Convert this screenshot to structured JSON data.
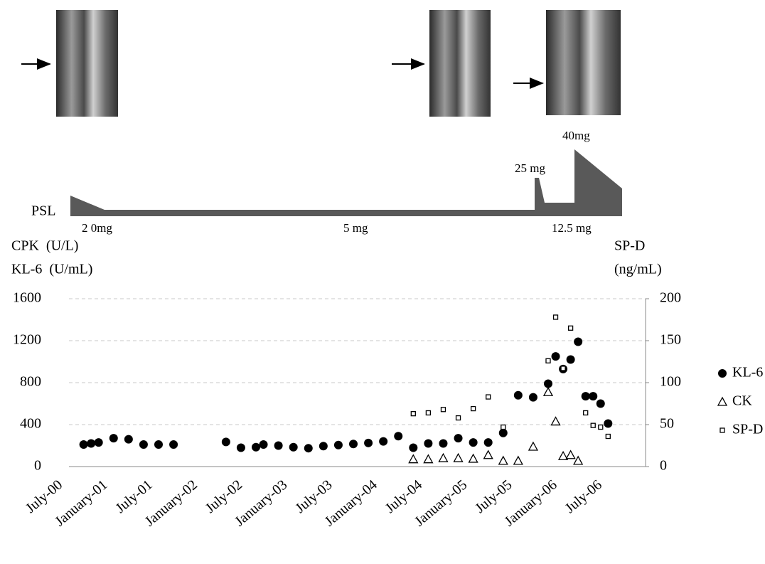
{
  "psl": {
    "label": "PSL",
    "doses": [
      "2 0mg",
      "5 mg",
      "12.5 mg",
      "25 mg",
      "40mg"
    ]
  },
  "chart_data": {
    "type": "scatter",
    "left_axis_labels": [
      "CPK  (U/L)",
      "KL-6  (U/mL)"
    ],
    "right_axis_labels": [
      "SP-D",
      "(ng/mL)"
    ],
    "xlim": [
      "2000-07",
      "2007-01"
    ],
    "xticks": [
      {
        "value": "2000-07",
        "label": "July-00"
      },
      {
        "value": "2001-01",
        "label": "January-01"
      },
      {
        "value": "2001-07",
        "label": "July-01"
      },
      {
        "value": "2002-01",
        "label": "January-02"
      },
      {
        "value": "2002-07",
        "label": "July-02"
      },
      {
        "value": "2003-01",
        "label": "January-03"
      },
      {
        "value": "2003-07",
        "label": "July-03"
      },
      {
        "value": "2004-01",
        "label": "January-04"
      },
      {
        "value": "2004-07",
        "label": "July-04"
      },
      {
        "value": "2005-01",
        "label": "January-05"
      },
      {
        "value": "2005-07",
        "label": "July-05"
      },
      {
        "value": "2006-01",
        "label": "January-06"
      },
      {
        "value": "2006-07",
        "label": "July-06"
      }
    ],
    "ylim": [
      0,
      1600
    ],
    "yticks": [
      0,
      400,
      800,
      1200,
      1600
    ],
    "y2lim": [
      0,
      200
    ],
    "y2ticks": [
      0,
      50,
      100,
      150,
      200
    ],
    "grid": true,
    "series": [
      {
        "name": "KL-6",
        "color": "#000000",
        "marker": "circle",
        "x": [
          "2000-10",
          "2000-11",
          "2000-12",
          "2001-02",
          "2001-04",
          "2001-06",
          "2001-08",
          "2001-10",
          "2002-05",
          "2002-07",
          "2002-09",
          "2002-10",
          "2002-12",
          "2003-02",
          "2003-04",
          "2003-06",
          "2003-08",
          "2003-10",
          "2003-12",
          "2004-02",
          "2004-04",
          "2004-06",
          "2004-08",
          "2004-10",
          "2004-12",
          "2005-02",
          "2005-04",
          "2005-06",
          "2005-08",
          "2005-10",
          "2005-12",
          "2006-01",
          "2006-02",
          "2006-03",
          "2006-04",
          "2006-05",
          "2006-06",
          "2006-07",
          "2006-08"
        ],
        "values": [
          210,
          220,
          230,
          270,
          260,
          210,
          210,
          210,
          235,
          180,
          185,
          210,
          200,
          185,
          175,
          195,
          205,
          215,
          225,
          240,
          290,
          180,
          220,
          220,
          270,
          230,
          230,
          320,
          680,
          660,
          790,
          1050,
          930,
          1020,
          1190,
          670,
          670,
          600,
          410
        ]
      },
      {
        "name": "CK",
        "color": "#000000",
        "marker": "triangle",
        "x": [
          "2004-06",
          "2004-08",
          "2004-10",
          "2004-12",
          "2005-02",
          "2005-04",
          "2005-06",
          "2005-08",
          "2005-10",
          "2005-12",
          "2006-01",
          "2006-02",
          "2006-03",
          "2006-04"
        ],
        "values": [
          70,
          70,
          80,
          80,
          75,
          110,
          55,
          55,
          190,
          710,
          430,
          100,
          110,
          55
        ]
      },
      {
        "name": "SP-D",
        "color": "#000000",
        "marker": "square",
        "axis": "y2",
        "x": [
          "2004-06",
          "2004-08",
          "2004-10",
          "2004-12",
          "2005-02",
          "2005-04",
          "2005-06",
          "2005-12",
          "2006-01",
          "2006-02",
          "2006-03",
          "2006-05",
          "2006-06",
          "2006-07",
          "2006-08"
        ],
        "values": [
          63,
          64,
          68,
          58,
          69,
          83,
          47,
          126,
          178,
          117,
          165,
          64,
          49,
          47,
          36
        ]
      }
    ]
  }
}
